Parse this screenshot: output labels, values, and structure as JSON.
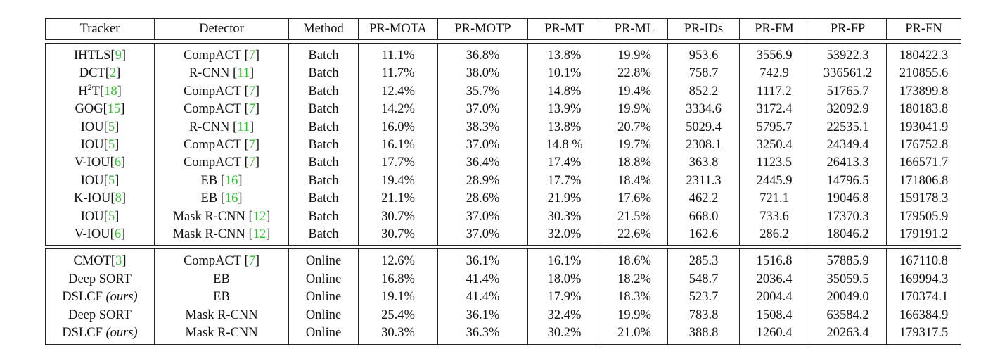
{
  "columns": [
    "Tracker",
    "Detector",
    "Method",
    "PR-MOTA",
    "PR-MOTP",
    "PR-MT",
    "PR-ML",
    "PR-IDs",
    "PR-FM",
    "PR-FP",
    "PR-FN"
  ],
  "groups": [
    {
      "rows": [
        {
          "tracker": "IHTLS",
          "tracker_ref": "9",
          "detector": "CompACT",
          "detector_ref": "7",
          "method": "Batch",
          "values": [
            "11.1%",
            "36.8%",
            "13.8%",
            "19.9%",
            "953.6",
            "3556.9",
            "53922.3",
            "180422.3"
          ],
          "bold": []
        },
        {
          "tracker": "DCT",
          "tracker_ref": "2",
          "detector": "R-CNN",
          "detector_ref": "11",
          "method": "Batch",
          "values": [
            "11.7%",
            "38.0%",
            "10.1%",
            "22.8%",
            "758.7",
            "742.9",
            "336561.2",
            "210855.6"
          ],
          "bold": []
        },
        {
          "tracker": "H",
          "tracker_sup": "2",
          "tracker_tail": "T",
          "tracker_ref": "18",
          "detector": "CompACT",
          "detector_ref": "7",
          "method": "Batch",
          "values": [
            "12.4%",
            "35.7%",
            "14.8%",
            "19.4%",
            "852.2",
            "1117.2",
            "51765.7",
            "173899.8"
          ],
          "bold": []
        },
        {
          "tracker": "GOG",
          "tracker_ref": "15",
          "detector": "CompACT",
          "detector_ref": "7",
          "method": "Batch",
          "values": [
            "14.2%",
            "37.0%",
            "13.9%",
            "19.9%",
            "3334.6",
            "3172.4",
            "32092.9",
            "180183.8"
          ],
          "bold": []
        },
        {
          "tracker": "IOU",
          "tracker_ref": "5",
          "detector": "R-CNN",
          "detector_ref": "11",
          "method": "Batch",
          "values": [
            "16.0%",
            "38.3%",
            "13.8%",
            "20.7%",
            "5029.4",
            "5795.7",
            "22535.1",
            "193041.9"
          ],
          "bold": [
            1
          ]
        },
        {
          "tracker": "IOU",
          "tracker_ref": "5",
          "detector": "CompACT",
          "detector_ref": "7",
          "method": "Batch",
          "values": [
            "16.1%",
            "37.0%",
            "14.8 %",
            "19.7%",
            "2308.1",
            "3250.4",
            "24349.4",
            "176752.8"
          ],
          "bold": []
        },
        {
          "tracker": "V-IOU",
          "tracker_ref": "6",
          "detector": "CompACT",
          "detector_ref": "7",
          "method": "Batch",
          "values": [
            "17.7%",
            "36.4%",
            "17.4%",
            "18.8%",
            "363.8",
            "1123.5",
            "26413.3",
            "166571.7"
          ],
          "bold": []
        },
        {
          "tracker": "IOU",
          "tracker_ref": "5",
          "detector": "EB",
          "detector_ref": "16",
          "method": "Batch",
          "values": [
            "19.4%",
            "28.9%",
            "17.7%",
            "18.4%",
            "2311.3",
            "2445.9",
            "14796.5",
            "171806.8"
          ],
          "bold": [
            6
          ]
        },
        {
          "tracker": "K-IOU",
          "tracker_ref": "8",
          "detector": "EB",
          "detector_ref": "16",
          "method": "Batch",
          "values": [
            "21.1%",
            "28.6%",
            "21.9%",
            "17.6%",
            "462.2",
            "721.1",
            "19046.8",
            "159178.3"
          ],
          "bold": [
            3,
            7
          ]
        },
        {
          "tracker": "IOU",
          "tracker_ref": "5",
          "detector": "Mask R-CNN",
          "detector_ref": "12",
          "method": "Batch",
          "values": [
            "30.7%",
            "37.0%",
            "30.3%",
            "21.5%",
            "668.0",
            "733.6",
            "17370.3",
            "179505.9"
          ],
          "bold": [
            0
          ]
        },
        {
          "tracker": "V-IOU",
          "tracker_ref": "6",
          "detector": "Mask R-CNN",
          "detector_ref": "12",
          "method": "Batch",
          "values": [
            "30.7%",
            "37.0%",
            "32.0%",
            "22.6%",
            "162.6",
            "286.2",
            "18046.2",
            "179191.2"
          ],
          "bold": [
            0,
            2,
            4,
            5
          ]
        }
      ]
    },
    {
      "rows": [
        {
          "tracker": "CMOT",
          "tracker_ref": "3",
          "detector": "CompACT",
          "detector_ref": "7",
          "method": "Online",
          "values": [
            "12.6%",
            "36.1%",
            "16.1%",
            "18.6%",
            "285.3",
            "1516.8",
            "57885.9",
            "167110.8"
          ],
          "bold": [
            4
          ]
        },
        {
          "tracker": "Deep SORT",
          "detector": "EB",
          "method": "Online",
          "values": [
            "16.8%",
            "41.4%",
            "18.0%",
            "18.2%",
            "548.7",
            "2036.4",
            "35059.5",
            "169994.3"
          ],
          "bold": [
            1,
            3
          ]
        },
        {
          "tracker": "DSLCF",
          "tracker_italic": "(ours)",
          "detector": "EB",
          "method": "Online",
          "values": [
            "19.1%",
            "41.4%",
            "17.9%",
            "18.3%",
            "523.7",
            "2004.4",
            "20049.0",
            "170374.1"
          ],
          "bold": [
            1,
            6
          ]
        },
        {
          "tracker": "Deep SORT",
          "detector": "Mask R-CNN",
          "method": "Online",
          "values": [
            "25.4%",
            "36.1%",
            "32.4%",
            "19.9%",
            "783.8",
            "1508.4",
            "63584.2",
            "166384.9"
          ],
          "bold": [
            2,
            7
          ]
        },
        {
          "tracker": "DSLCF",
          "tracker_italic": "(ours)",
          "detector": "Mask R-CNN",
          "method": "Online",
          "values": [
            "30.3%",
            "36.3%",
            "30.2%",
            "21.0%",
            "388.8",
            "1260.4",
            "20263.4",
            "179317.5"
          ],
          "bold": [
            0,
            5
          ]
        }
      ]
    }
  ],
  "colors": {
    "reference": "#2fbf2f",
    "text": "#111111",
    "rule": "#222222"
  }
}
